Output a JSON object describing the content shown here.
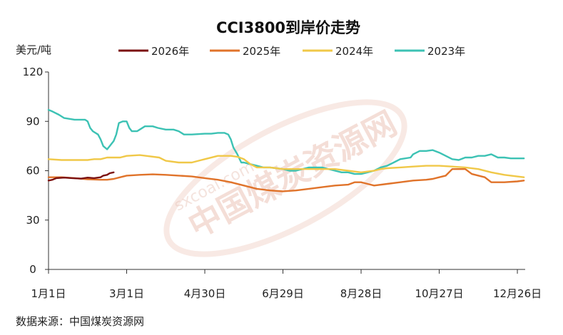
{
  "chart_data": {
    "type": "line",
    "title": "CCI3800到岸价走势",
    "ylabel": "美元/吨",
    "ylim": [
      0,
      120
    ],
    "yticks": [
      "120",
      "90",
      "60",
      "30",
      "0"
    ],
    "yticks_values": [
      120,
      90,
      60,
      30,
      0
    ],
    "xlim": [
      0,
      366
    ],
    "xticks": [
      {
        "label": "1月1日",
        "day": 0
      },
      {
        "label": "3月1日",
        "day": 60
      },
      {
        "label": "4月30日",
        "day": 120
      },
      {
        "label": "6月29日",
        "day": 180
      },
      {
        "label": "8月28日",
        "day": 240
      },
      {
        "label": "10月27日",
        "day": 300
      },
      {
        "label": "12月26日",
        "day": 360
      }
    ],
    "legend_position": "top",
    "grid": false,
    "series": [
      {
        "name": "2026年",
        "color": "#7b1010",
        "points": [
          [
            0,
            54
          ],
          [
            3,
            54.5
          ],
          [
            6,
            55.5
          ],
          [
            12,
            55.8
          ],
          [
            18,
            55.5
          ],
          [
            25,
            55.2
          ],
          [
            30,
            55.8
          ],
          [
            35,
            55.5
          ],
          [
            40,
            56
          ],
          [
            42,
            57
          ],
          [
            45,
            57.5
          ],
          [
            47,
            58.5
          ],
          [
            50,
            59
          ]
        ]
      },
      {
        "name": "2025年",
        "color": "#e0732a",
        "points": [
          [
            0,
            56
          ],
          [
            10,
            56
          ],
          [
            20,
            55.5
          ],
          [
            30,
            54.8
          ],
          [
            40,
            54.5
          ],
          [
            45,
            54.5
          ],
          [
            50,
            55
          ],
          [
            55,
            56
          ],
          [
            60,
            57
          ],
          [
            70,
            57.5
          ],
          [
            80,
            57.8
          ],
          [
            90,
            57.5
          ],
          [
            100,
            57
          ],
          [
            110,
            56.5
          ],
          [
            120,
            55.5
          ],
          [
            130,
            54.5
          ],
          [
            140,
            53
          ],
          [
            150,
            51
          ],
          [
            160,
            49
          ],
          [
            170,
            48
          ],
          [
            180,
            47.5
          ],
          [
            190,
            48
          ],
          [
            200,
            49
          ],
          [
            210,
            50
          ],
          [
            220,
            51
          ],
          [
            230,
            51.5
          ],
          [
            235,
            53
          ],
          [
            240,
            53
          ],
          [
            245,
            52
          ],
          [
            250,
            51
          ],
          [
            260,
            52
          ],
          [
            270,
            53
          ],
          [
            280,
            54
          ],
          [
            290,
            54.5
          ],
          [
            295,
            55
          ],
          [
            300,
            56
          ],
          [
            305,
            57
          ],
          [
            310,
            61
          ],
          [
            320,
            61
          ],
          [
            325,
            58
          ],
          [
            335,
            56
          ],
          [
            340,
            53
          ],
          [
            350,
            53
          ],
          [
            360,
            53.5
          ],
          [
            365,
            54
          ]
        ]
      },
      {
        "name": "2024年",
        "color": "#f0c848",
        "points": [
          [
            0,
            67
          ],
          [
            10,
            66.5
          ],
          [
            20,
            66.5
          ],
          [
            30,
            66.5
          ],
          [
            35,
            67
          ],
          [
            40,
            67
          ],
          [
            45,
            68
          ],
          [
            55,
            68
          ],
          [
            60,
            69
          ],
          [
            70,
            69.5
          ],
          [
            75,
            69
          ],
          [
            85,
            68
          ],
          [
            90,
            66
          ],
          [
            100,
            65
          ],
          [
            110,
            65
          ],
          [
            115,
            66
          ],
          [
            120,
            67
          ],
          [
            130,
            69
          ],
          [
            135,
            69
          ],
          [
            140,
            69
          ],
          [
            145,
            68.5
          ],
          [
            150,
            67
          ],
          [
            155,
            64
          ],
          [
            160,
            62
          ],
          [
            170,
            62
          ],
          [
            180,
            61
          ],
          [
            190,
            61
          ],
          [
            200,
            61
          ],
          [
            210,
            61
          ],
          [
            220,
            61
          ],
          [
            230,
            60
          ],
          [
            240,
            59
          ],
          [
            250,
            60
          ],
          [
            255,
            61
          ],
          [
            260,
            61.5
          ],
          [
            270,
            62
          ],
          [
            280,
            62.5
          ],
          [
            290,
            63
          ],
          [
            300,
            63
          ],
          [
            310,
            62.5
          ],
          [
            320,
            62
          ],
          [
            330,
            61
          ],
          [
            340,
            59
          ],
          [
            350,
            57.5
          ],
          [
            360,
            56.5
          ],
          [
            365,
            56
          ]
        ]
      },
      {
        "name": "2023年",
        "color": "#3cc2b4",
        "points": [
          [
            0,
            97
          ],
          [
            3,
            96
          ],
          [
            8,
            94
          ],
          [
            12,
            92
          ],
          [
            20,
            91
          ],
          [
            28,
            91
          ],
          [
            30,
            90
          ],
          [
            32,
            86
          ],
          [
            34,
            84
          ],
          [
            38,
            82
          ],
          [
            40,
            79
          ],
          [
            42,
            75
          ],
          [
            45,
            73
          ],
          [
            47,
            75
          ],
          [
            50,
            78
          ],
          [
            52,
            82
          ],
          [
            54,
            89
          ],
          [
            57,
            90
          ],
          [
            60,
            90
          ],
          [
            62,
            86
          ],
          [
            64,
            84
          ],
          [
            68,
            84
          ],
          [
            70,
            85
          ],
          [
            74,
            87
          ],
          [
            80,
            87
          ],
          [
            84,
            86
          ],
          [
            90,
            85
          ],
          [
            96,
            85
          ],
          [
            100,
            84
          ],
          [
            104,
            82
          ],
          [
            110,
            82
          ],
          [
            120,
            82.5
          ],
          [
            125,
            82.5
          ],
          [
            130,
            83
          ],
          [
            135,
            83
          ],
          [
            138,
            82
          ],
          [
            140,
            79
          ],
          [
            142,
            74
          ],
          [
            145,
            70
          ],
          [
            148,
            65
          ],
          [
            150,
            65
          ],
          [
            155,
            64
          ],
          [
            160,
            63
          ],
          [
            165,
            62
          ],
          [
            170,
            62
          ],
          [
            180,
            61
          ],
          [
            185,
            60
          ],
          [
            190,
            60
          ],
          [
            200,
            62
          ],
          [
            210,
            62
          ],
          [
            220,
            60
          ],
          [
            225,
            59
          ],
          [
            230,
            59
          ],
          [
            235,
            58
          ],
          [
            240,
            58
          ],
          [
            245,
            59
          ],
          [
            250,
            60
          ],
          [
            255,
            62
          ],
          [
            260,
            63
          ],
          [
            265,
            65
          ],
          [
            270,
            67
          ],
          [
            278,
            68
          ],
          [
            280,
            70
          ],
          [
            285,
            72
          ],
          [
            290,
            72
          ],
          [
            295,
            72.5
          ],
          [
            300,
            71
          ],
          [
            305,
            69
          ],
          [
            310,
            67
          ],
          [
            315,
            66.5
          ],
          [
            320,
            68
          ],
          [
            325,
            68
          ],
          [
            330,
            69
          ],
          [
            335,
            69
          ],
          [
            340,
            70
          ],
          [
            345,
            68
          ],
          [
            350,
            68
          ],
          [
            355,
            67.5
          ],
          [
            360,
            67.5
          ],
          [
            365,
            67.5
          ]
        ]
      }
    ]
  },
  "source_text": "数据来源：中国煤炭资源网",
  "watermark": {
    "main": "中国煤炭资源网",
    "sub": "sxcoal.com"
  }
}
